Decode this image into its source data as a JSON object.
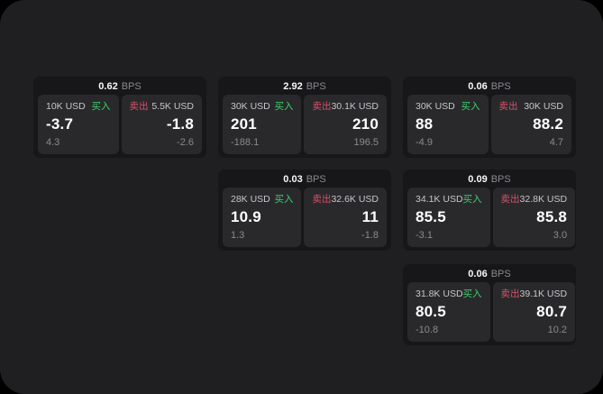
{
  "colors": {
    "background": "#000000",
    "surface": "#1f1f21",
    "card": "#171719",
    "tile": "#29292b",
    "buy_accent": "#3ecf70",
    "sell_accent": "#d8516b",
    "primary_text": "#ffffff",
    "secondary_text": "#8a8a8f"
  },
  "cards": [
    {
      "bps_value": "0.62",
      "bps_unit": "BPS",
      "buy": {
        "amount": "10K USD",
        "side_label": "买入",
        "value": "-3.7",
        "sub_value": "4.3"
      },
      "sell": {
        "side_label": "卖出",
        "amount": "5.5K USD",
        "value": "-1.8",
        "sub_value": "-2.6"
      }
    },
    {
      "bps_value": "2.92",
      "bps_unit": "BPS",
      "buy": {
        "amount": "30K USD",
        "side_label": "买入",
        "value": "201",
        "sub_value": "-188.1"
      },
      "sell": {
        "side_label": "卖出",
        "amount": "30.1K USD",
        "value": "210",
        "sub_value": "196.5"
      }
    },
    {
      "bps_value": "0.06",
      "bps_unit": "BPS",
      "buy": {
        "amount": "30K USD",
        "side_label": "买入",
        "value": "88",
        "sub_value": "-4.9"
      },
      "sell": {
        "side_label": "卖出",
        "amount": "30K USD",
        "value": "88.2",
        "sub_value": "4.7"
      }
    },
    {
      "bps_value": "0.03",
      "bps_unit": "BPS",
      "buy": {
        "amount": "28K USD",
        "side_label": "买入",
        "value": "10.9",
        "sub_value": "1.3"
      },
      "sell": {
        "side_label": "卖出",
        "amount": "32.6K USD",
        "value": "11",
        "sub_value": "-1.8"
      }
    },
    {
      "bps_value": "0.09",
      "bps_unit": "BPS",
      "buy": {
        "amount": "34.1K USD",
        "side_label": "买入",
        "value": "85.5",
        "sub_value": "-3.1"
      },
      "sell": {
        "side_label": "卖出",
        "amount": "32.8K USD",
        "value": "85.8",
        "sub_value": "3.0"
      }
    },
    {
      "bps_value": "0.06",
      "bps_unit": "BPS",
      "buy": {
        "amount": "31.8K USD",
        "side_label": "买入",
        "value": "80.5",
        "sub_value": "-10.8"
      },
      "sell": {
        "side_label": "卖出",
        "amount": "39.1K USD",
        "value": "80.7",
        "sub_value": "10.2"
      }
    }
  ]
}
